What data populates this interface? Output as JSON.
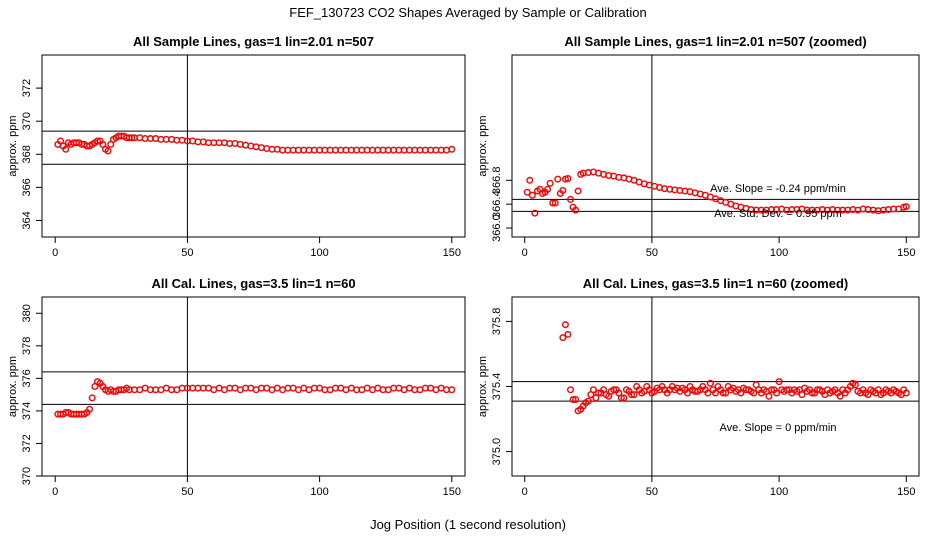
{
  "figure": {
    "title": "FEF_130723  CO2 Shapes Averaged by Sample or Calibration",
    "xlabel": "Jog Position (1 second resolution)"
  },
  "chart_data": [
    {
      "type": "scatter",
      "title": "All Sample Lines, gas=1 lin=2.01 n=507",
      "xlabel": "",
      "ylabel": "approx. ppm",
      "xlim": [
        -5,
        155
      ],
      "ylim": [
        363,
        374
      ],
      "xticks": [
        0,
        50,
        100,
        150
      ],
      "yticks": [
        364,
        366,
        368,
        370,
        372
      ],
      "hlines": [
        369.4,
        367.4
      ],
      "vlines": [
        50
      ],
      "grid": false,
      "marker_color": "#ff0000",
      "series": [
        {
          "x": [
            1,
            2,
            3,
            4,
            5,
            6,
            7,
            8,
            9,
            10,
            11,
            12,
            13,
            14,
            15,
            16,
            17,
            18,
            19,
            20,
            21,
            22,
            23,
            24,
            25,
            26,
            27,
            28,
            29,
            30,
            32,
            34,
            36,
            38,
            40,
            42,
            44,
            46,
            48,
            50,
            52,
            54,
            56,
            58,
            60,
            62,
            64,
            66,
            68,
            70,
            72,
            74,
            76,
            78,
            80,
            82,
            84,
            86,
            88,
            90,
            92,
            94,
            96,
            98,
            100,
            102,
            104,
            106,
            108,
            110,
            112,
            114,
            116,
            118,
            120,
            122,
            124,
            126,
            128,
            130,
            132,
            134,
            136,
            138,
            140,
            142,
            144,
            146,
            148,
            150
          ],
          "y": [
            368.6,
            368.8,
            368.5,
            368.3,
            368.7,
            368.6,
            368.7,
            368.7,
            368.7,
            368.6,
            368.6,
            368.5,
            368.5,
            368.6,
            368.7,
            368.8,
            368.8,
            368.6,
            368.3,
            368.2,
            368.6,
            368.9,
            369.0,
            369.1,
            369.1,
            369.1,
            369.0,
            369.0,
            369.0,
            369.0,
            369.0,
            368.95,
            368.95,
            368.95,
            368.9,
            368.9,
            368.9,
            368.85,
            368.85,
            368.8,
            368.8,
            368.75,
            368.75,
            368.7,
            368.7,
            368.7,
            368.7,
            368.65,
            368.65,
            368.6,
            368.55,
            368.5,
            368.45,
            368.4,
            368.35,
            368.3,
            368.3,
            368.25,
            368.25,
            368.25,
            368.25,
            368.25,
            368.25,
            368.25,
            368.25,
            368.25,
            368.25,
            368.25,
            368.25,
            368.25,
            368.25,
            368.25,
            368.25,
            368.25,
            368.25,
            368.25,
            368.25,
            368.25,
            368.25,
            368.25,
            368.25,
            368.25,
            368.25,
            368.25,
            368.25,
            368.25,
            368.25,
            368.25,
            368.25,
            368.3
          ]
        }
      ]
    },
    {
      "type": "scatter",
      "title": "All Sample Lines, gas=1 lin=2.01 n=507 (zoomed)",
      "xlabel": "",
      "ylabel": "approx. ppm",
      "xlim": [
        -5,
        155
      ],
      "ylim": [
        365.85,
        368.9
      ],
      "xticks": [
        0,
        50,
        100,
        150
      ],
      "yticks": [
        366.0,
        366.4,
        366.8
      ],
      "ytick_labels": [
        "366.0",
        "366.4",
        "366.8"
      ],
      "hlines": [
        366.48,
        366.28
      ],
      "vlines": [
        50
      ],
      "grid": false,
      "marker_color": "#ff0000",
      "annotations": [
        "Ave. Slope =  -0.24  ppm/min",
        "Ave. Std. Dev. =  0.95  ppm"
      ],
      "series": [
        {
          "x": [
            1,
            2,
            3,
            4,
            5,
            6,
            7,
            8,
            9,
            10,
            11,
            12,
            13,
            14,
            15,
            16,
            17,
            18,
            19,
            20,
            21,
            22,
            23,
            25,
            27,
            29,
            31,
            33,
            35,
            37,
            39,
            41,
            43,
            45,
            47,
            49,
            51,
            53,
            55,
            57,
            59,
            61,
            63,
            65,
            67,
            69,
            71,
            73,
            75,
            77,
            79,
            81,
            83,
            85,
            87,
            89,
            91,
            93,
            95,
            97,
            99,
            101,
            103,
            105,
            107,
            109,
            111,
            113,
            115,
            117,
            119,
            121,
            123,
            125,
            127,
            129,
            131,
            133,
            135,
            137,
            139,
            141,
            143,
            145,
            147,
            149,
            150
          ],
          "y": [
            366.6,
            366.8,
            366.55,
            366.25,
            366.62,
            366.65,
            366.58,
            366.6,
            366.65,
            366.75,
            366.42,
            366.42,
            366.82,
            366.58,
            366.63,
            366.82,
            366.83,
            366.48,
            366.35,
            366.3,
            366.62,
            366.9,
            366.92,
            366.93,
            366.94,
            366.92,
            366.9,
            366.88,
            366.87,
            366.85,
            366.84,
            366.82,
            366.8,
            366.77,
            366.74,
            366.72,
            366.7,
            366.68,
            366.66,
            366.65,
            366.64,
            366.63,
            366.62,
            366.61,
            366.59,
            366.57,
            366.55,
            366.52,
            366.49,
            366.46,
            366.43,
            366.4,
            366.37,
            366.35,
            366.33,
            366.31,
            366.3,
            366.3,
            366.3,
            366.31,
            366.31,
            366.32,
            366.3,
            366.31,
            366.31,
            366.32,
            366.3,
            366.3,
            366.3,
            366.31,
            366.3,
            366.31,
            366.3,
            366.3,
            366.3,
            366.31,
            366.3,
            366.32,
            366.31,
            366.3,
            366.29,
            366.3,
            366.31,
            366.32,
            366.32,
            366.35,
            366.36
          ]
        }
      ]
    },
    {
      "type": "scatter",
      "title": "All Cal. Lines, gas=3.5 lin=1 n=60",
      "xlabel": "",
      "ylabel": "approx. ppm",
      "xlim": [
        -5,
        155
      ],
      "ylim": [
        370,
        381
      ],
      "xticks": [
        0,
        50,
        100,
        150
      ],
      "yticks": [
        370,
        372,
        374,
        376,
        378,
        380
      ],
      "ytick_labels": [
        "370",
        "372",
        "374",
        "376",
        "378",
        "380"
      ],
      "hlines": [
        376.4,
        374.4
      ],
      "vlines": [
        50
      ],
      "grid": false,
      "marker_color": "#ff0000",
      "series": [
        {
          "x": [
            1,
            2,
            3,
            4,
            5,
            6,
            7,
            8,
            9,
            10,
            11,
            12,
            13,
            14,
            15,
            16,
            17,
            18,
            19,
            20,
            21,
            22,
            23,
            24,
            25,
            26,
            27,
            28,
            30,
            32,
            34,
            36,
            38,
            40,
            42,
            44,
            46,
            48,
            50,
            52,
            54,
            56,
            58,
            60,
            62,
            64,
            66,
            68,
            70,
            72,
            74,
            76,
            78,
            80,
            82,
            84,
            86,
            88,
            90,
            92,
            94,
            96,
            98,
            100,
            102,
            104,
            106,
            108,
            110,
            112,
            114,
            116,
            118,
            120,
            122,
            124,
            126,
            128,
            130,
            132,
            134,
            136,
            138,
            140,
            142,
            144,
            146,
            148,
            150
          ],
          "y": [
            373.8,
            373.8,
            373.8,
            373.9,
            373.9,
            373.8,
            373.8,
            373.8,
            373.8,
            373.8,
            373.8,
            373.9,
            374.1,
            374.8,
            375.5,
            375.8,
            375.7,
            375.5,
            375.3,
            375.2,
            375.3,
            375.2,
            375.2,
            375.3,
            375.3,
            375.3,
            375.4,
            375.3,
            375.3,
            375.3,
            375.4,
            375.3,
            375.3,
            375.3,
            375.4,
            375.3,
            375.3,
            375.4,
            375.4,
            375.4,
            375.4,
            375.4,
            375.4,
            375.3,
            375.4,
            375.3,
            375.4,
            375.4,
            375.3,
            375.4,
            375.4,
            375.3,
            375.4,
            375.4,
            375.3,
            375.4,
            375.3,
            375.4,
            375.4,
            375.3,
            375.4,
            375.3,
            375.4,
            375.4,
            375.3,
            375.3,
            375.4,
            375.4,
            375.3,
            375.4,
            375.3,
            375.3,
            375.4,
            375.3,
            375.4,
            375.3,
            375.3,
            375.4,
            375.4,
            375.3,
            375.4,
            375.3,
            375.3,
            375.4,
            375.4,
            375.3,
            375.4,
            375.3,
            375.3
          ]
        }
      ]
    },
    {
      "type": "scatter",
      "title": "All Cal. Lines, gas=3.5 lin=1 n=60 (zoomed)",
      "xlabel": "",
      "ylabel": "approx. ppm",
      "xlim": [
        -5,
        155
      ],
      "ylim": [
        374.85,
        375.95
      ],
      "xticks": [
        0,
        50,
        100,
        150
      ],
      "yticks": [
        375.0,
        375.4,
        375.8
      ],
      "ytick_labels": [
        "375.0",
        "375.4",
        "375.8"
      ],
      "hlines": [
        375.43,
        375.31
      ],
      "vlines": [
        50
      ],
      "grid": false,
      "marker_color": "#ff0000",
      "annotations": [
        "Ave. Slope =  0  ppm/min"
      ],
      "series": [
        {
          "x": [
            15,
            16,
            17,
            18,
            19,
            20,
            21,
            22,
            23,
            24,
            25,
            26,
            27,
            28,
            29,
            30,
            31,
            32,
            33,
            34,
            35,
            36,
            37,
            38,
            39,
            40,
            41,
            42,
            43,
            44,
            45,
            46,
            47,
            48,
            49,
            50,
            51,
            52,
            53,
            54,
            55,
            56,
            57,
            58,
            59,
            60,
            61,
            62,
            63,
            64,
            65,
            66,
            67,
            68,
            69,
            70,
            71,
            72,
            73,
            74,
            75,
            76,
            77,
            78,
            79,
            80,
            81,
            82,
            83,
            84,
            85,
            86,
            87,
            88,
            89,
            90,
            91,
            92,
            93,
            94,
            95,
            96,
            97,
            98,
            99,
            100,
            101,
            102,
            103,
            104,
            105,
            106,
            107,
            108,
            109,
            110,
            111,
            112,
            113,
            114,
            115,
            116,
            117,
            118,
            119,
            120,
            121,
            122,
            123,
            124,
            125,
            126,
            127,
            128,
            129,
            130,
            131,
            132,
            133,
            134,
            135,
            136,
            137,
            138,
            139,
            140,
            141,
            142,
            143,
            144,
            145,
            146,
            147,
            148,
            149,
            150
          ],
          "y": [
            375.7,
            375.78,
            375.72,
            375.38,
            375.32,
            375.32,
            375.25,
            375.26,
            375.28,
            375.3,
            375.31,
            375.35,
            375.38,
            375.33,
            375.36,
            375.36,
            375.38,
            375.35,
            375.34,
            375.37,
            375.38,
            375.38,
            375.36,
            375.33,
            375.33,
            375.38,
            375.37,
            375.35,
            375.35,
            375.4,
            375.38,
            375.36,
            375.37,
            375.4,
            375.38,
            375.36,
            375.37,
            375.39,
            375.38,
            375.4,
            375.38,
            375.36,
            375.38,
            375.4,
            375.38,
            375.39,
            375.37,
            375.39,
            375.38,
            375.36,
            375.4,
            375.38,
            375.37,
            375.37,
            375.38,
            375.4,
            375.38,
            375.36,
            375.42,
            375.38,
            375.36,
            375.4,
            375.38,
            375.36,
            375.36,
            375.4,
            375.38,
            375.39,
            375.37,
            375.38,
            375.36,
            375.39,
            375.38,
            375.38,
            375.37,
            375.36,
            375.41,
            375.38,
            375.36,
            375.38,
            375.37,
            375.34,
            375.38,
            375.38,
            375.36,
            375.43,
            375.38,
            375.37,
            375.38,
            375.38,
            375.36,
            375.38,
            375.37,
            375.38,
            375.35,
            375.39,
            375.37,
            375.38,
            375.36,
            375.36,
            375.38,
            375.38,
            375.37,
            375.35,
            375.38,
            375.36,
            375.37,
            375.38,
            375.36,
            375.34,
            375.38,
            375.36,
            375.38,
            375.4,
            375.42,
            375.41,
            375.37,
            375.36,
            375.38,
            375.36,
            375.35,
            375.38,
            375.37,
            375.36,
            375.38,
            375.35,
            375.36,
            375.38,
            375.37,
            375.36,
            375.38,
            375.37,
            375.36,
            375.35,
            375.38,
            375.36
          ]
        }
      ]
    }
  ]
}
